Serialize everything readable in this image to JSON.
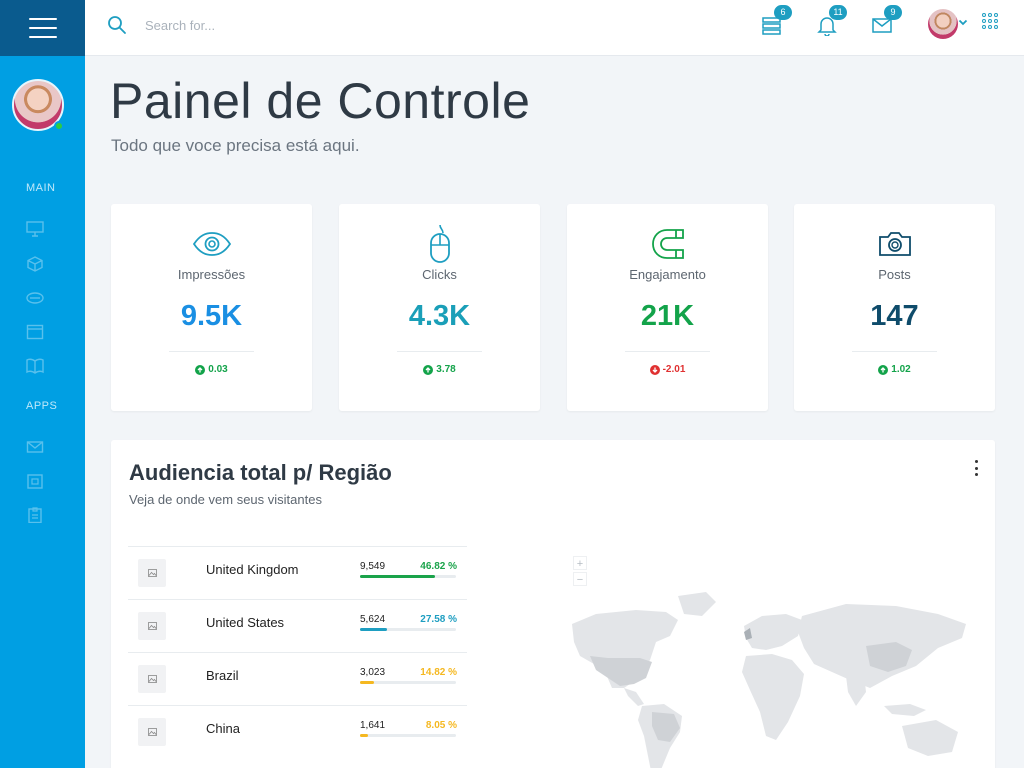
{
  "search": {
    "placeholder": "Search for..."
  },
  "topbar": {
    "badges": {
      "tasks": "6",
      "notifications": "11",
      "messages": "9"
    }
  },
  "sidebar": {
    "sections": [
      {
        "label": "MAIN"
      },
      {
        "label": "APPS"
      }
    ],
    "main_icons": [
      "monitor-icon",
      "cube-icon",
      "layers-icon",
      "window-icon",
      "book-icon"
    ],
    "apps_icons": [
      "mail-icon",
      "calendar-icon",
      "clipboard-icon"
    ]
  },
  "header": {
    "title": "Painel de Controle",
    "subtitle": "Todo que voce precisa está aqui."
  },
  "stats": [
    {
      "label": "Impressões",
      "value": "9.5K",
      "change": "0.03",
      "direction": "up",
      "icon": "eye-icon",
      "value_color": "#1a8fe3"
    },
    {
      "label": "Clicks",
      "value": "4.3K",
      "change": "3.78",
      "direction": "up",
      "icon": "mouse-icon",
      "value_color": "#1a9fb8"
    },
    {
      "label": "Engajamento",
      "value": "21K",
      "change": "-2.01",
      "direction": "down",
      "icon": "magnet-icon",
      "value_color": "#13a34a"
    },
    {
      "label": "Posts",
      "value": "147",
      "change": "1.02",
      "direction": "up",
      "icon": "camera-icon",
      "value_color": "#0f4c6b"
    }
  ],
  "audience": {
    "title": "Audiencia total p/ Região",
    "subtitle": "Veja de onde vem seus visitantes",
    "zoom_in": "+",
    "zoom_out": "−",
    "regions": [
      {
        "country": "United Kingdom",
        "count": "9,549",
        "percent": "46.82 %",
        "share": 0.4682,
        "color": "#1aa34a"
      },
      {
        "country": "United States",
        "count": "5,624",
        "percent": "27.58 %",
        "share": 0.2758,
        "color": "#1e9ec1"
      },
      {
        "country": "Brazil",
        "count": "3,023",
        "percent": "14.82 %",
        "share": 0.1482,
        "color": "#f5b820"
      },
      {
        "country": "China",
        "count": "1,641",
        "percent": "8.05 %",
        "share": 0.0805,
        "color": "#f5b820"
      }
    ]
  },
  "colors": {
    "sidebar": "#009fe3",
    "sidebar_top": "#0a5b8e",
    "accent": "#1e9ec1",
    "positive": "#13a34a",
    "negative": "#e03131"
  }
}
